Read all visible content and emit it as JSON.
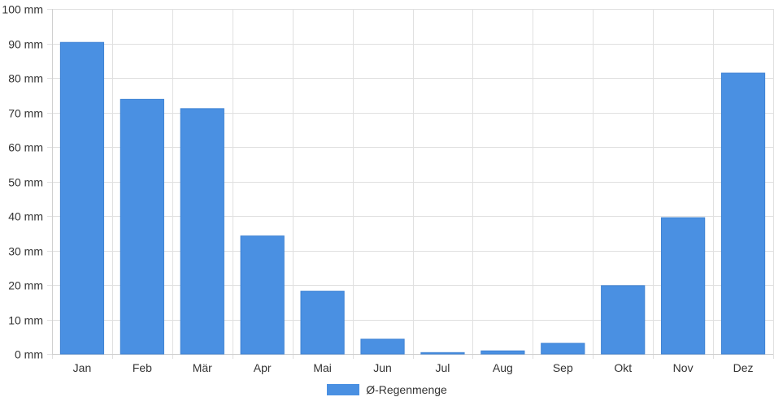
{
  "chart_data": {
    "type": "bar",
    "categories": [
      "Jan",
      "Feb",
      "Mär",
      "Apr",
      "Mai",
      "Jun",
      "Jul",
      "Aug",
      "Sep",
      "Okt",
      "Nov",
      "Dez"
    ],
    "series": [
      {
        "name": "Ø-Regenmenge",
        "values": [
          90.3,
          73.8,
          71.1,
          34.2,
          18.2,
          4.3,
          0.4,
          0.9,
          3.1,
          19.8,
          39.5,
          81.4
        ]
      }
    ],
    "y_tick_values": [
      0,
      10,
      20,
      30,
      40,
      50,
      60,
      70,
      80,
      90,
      100
    ],
    "y_tick_labels": [
      "0 mm",
      "10 mm",
      "20 mm",
      "30 mm",
      "40 mm",
      "50 mm",
      "60 mm",
      "70 mm",
      "80 mm",
      "90 mm",
      "100 mm"
    ],
    "ylim": [
      0,
      100
    ],
    "grid": true,
    "legend_position": "bottom",
    "colors": {
      "bar": "#4a90e2"
    }
  }
}
